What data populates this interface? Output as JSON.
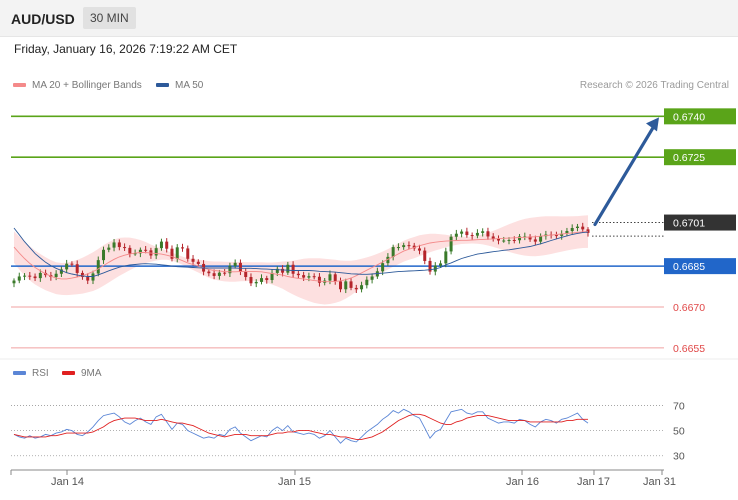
{
  "header": {
    "symbol": "AUD/USD",
    "timeframe": "30 MIN"
  },
  "datetime": "Friday, January 16, 2026 7:19:22 AM CET",
  "legend": {
    "ma20": {
      "label": "MA 20 + Bollinger Bands",
      "color": "#f48a8a"
    },
    "ma50": {
      "label": "MA 50",
      "color": "#2d5a9a"
    }
  },
  "credit": "Research © 2026 Trading Central",
  "rsi_legend": {
    "rsi": {
      "label": "RSI",
      "color": "#5b86d6"
    },
    "ma9": {
      "label": "9MA",
      "color": "#e02020"
    }
  },
  "colors": {
    "green": "#5aa419",
    "blue": "#2166c9",
    "red": "#e04848",
    "dark": "#333333",
    "bull": "#3a7a2a",
    "bear": "#b5252b",
    "band": "#fde0e0",
    "arrow": "#2d5a9a"
  },
  "chart_data": {
    "type": "candlestick",
    "instrument": "AUD/USD",
    "interval": "30 MIN",
    "levels": [
      {
        "value": 0.674,
        "label": "0.6740",
        "style": "green"
      },
      {
        "value": 0.6725,
        "label": "0.6725",
        "style": "green"
      },
      {
        "value": 0.6701,
        "label": "0.6701",
        "style": "current"
      },
      {
        "value": 0.6685,
        "label": "0.6685",
        "style": "blue"
      },
      {
        "value": 0.667,
        "label": "0.6670",
        "style": "red"
      },
      {
        "value": 0.6655,
        "label": "0.6655",
        "style": "red"
      }
    ],
    "price_range": [
      0.6652,
      0.6746
    ],
    "x_labels": [
      "Jan 14",
      "Jan 15",
      "Jan 16",
      "Jan 17",
      "Jan 31"
    ],
    "closes": [
      0.66797,
      0.66812,
      0.66815,
      0.66812,
      0.66806,
      0.66825,
      0.66817,
      0.6681,
      0.66822,
      0.66838,
      0.66859,
      0.66857,
      0.66825,
      0.6681,
      0.66797,
      0.66823,
      0.66872,
      0.6691,
      0.66918,
      0.66937,
      0.6692,
      0.66917,
      0.66896,
      0.66897,
      0.6691,
      0.66908,
      0.66889,
      0.66916,
      0.6694,
      0.66914,
      0.66877,
      0.66919,
      0.66915,
      0.66877,
      0.66866,
      0.66858,
      0.6683,
      0.66824,
      0.66814,
      0.66826,
      0.66824,
      0.66851,
      0.66862,
      0.6683,
      0.6681,
      0.66787,
      0.66792,
      0.66806,
      0.66799,
      0.66825,
      0.6684,
      0.66826,
      0.66855,
      0.66822,
      0.66817,
      0.66808,
      0.66813,
      0.66811,
      0.66789,
      0.66797,
      0.6682,
      0.66794,
      0.66765,
      0.66794,
      0.6677,
      0.66765,
      0.6678,
      0.668,
      0.66812,
      0.66831,
      0.66861,
      0.66884,
      0.6692,
      0.6692,
      0.66927,
      0.66925,
      0.66915,
      0.66907,
      0.66869,
      0.6683,
      0.66852,
      0.6686,
      0.66904,
      0.66958,
      0.66969,
      0.66977,
      0.66964,
      0.66962,
      0.66972,
      0.66978,
      0.66959,
      0.66951,
      0.66944,
      0.66944,
      0.66946,
      0.66945,
      0.66959,
      0.66959,
      0.66948,
      0.6694,
      0.6696,
      0.66966,
      0.66964,
      0.66961,
      0.66969,
      0.66979,
      0.6699,
      0.66995,
      0.66985,
      0.66972
    ],
    "ma50": [
      0.6699,
      0.66965,
      0.6694,
      0.66918,
      0.66896,
      0.6688,
      0.66864,
      0.66852,
      0.66842,
      0.66834,
      0.66826,
      0.66821,
      0.66817,
      0.66814,
      0.66812,
      0.66812,
      0.66818,
      0.66825,
      0.66833,
      0.6684,
      0.66846,
      0.66851,
      0.66854,
      0.66856,
      0.66858,
      0.66859,
      0.66858,
      0.66857,
      0.66855,
      0.66853,
      0.6685,
      0.66848,
      0.66847,
      0.66846,
      0.66845,
      0.66844,
      0.66843,
      0.66843,
      0.66843,
      0.66843,
      0.66843,
      0.66843,
      0.66843,
      0.66842,
      0.66842,
      0.66842,
      0.66841,
      0.6684,
      0.66839,
      0.66838,
      0.66837,
      0.66836,
      0.66835,
      0.66834,
      0.66834,
      0.66834,
      0.66834,
      0.66833,
      0.66831,
      0.6683,
      0.66829,
      0.66828,
      0.66826,
      0.66824,
      0.66822,
      0.66821,
      0.6682,
      0.6682,
      0.66821,
      0.66823,
      0.66824,
      0.66826,
      0.66828,
      0.6683,
      0.66831,
      0.66832,
      0.66833,
      0.66834,
      0.66835,
      0.66837,
      0.6684,
      0.66845,
      0.66855,
      0.66862,
      0.6687,
      0.66878,
      0.66884,
      0.66889,
      0.66894,
      0.66897,
      0.669,
      0.66903,
      0.66905,
      0.66908,
      0.6691,
      0.66913,
      0.66916,
      0.66919,
      0.66922,
      0.66927,
      0.66932,
      0.66938,
      0.66944,
      0.6695,
      0.66956,
      0.66961,
      0.66966,
      0.6697,
      0.66973,
      0.66975
    ],
    "ma20": [
      0.6692,
      0.66898,
      0.66878,
      0.6686,
      0.66845,
      0.66833,
      0.66822,
      0.66813,
      0.66806,
      0.66803,
      0.66803,
      0.66806,
      0.6681,
      0.66815,
      0.66822,
      0.6683,
      0.6684,
      0.66852,
      0.66864,
      0.66875,
      0.66884,
      0.6689,
      0.66895,
      0.66898,
      0.669,
      0.669,
      0.66898,
      0.66896,
      0.66894,
      0.6689,
      0.66885,
      0.66878,
      0.6687,
      0.66862,
      0.66856,
      0.6685,
      0.66844,
      0.66838,
      0.66834,
      0.66832,
      0.6683,
      0.66829,
      0.66829,
      0.6683,
      0.6683,
      0.6683,
      0.6683,
      0.66829,
      0.66826,
      0.66823,
      0.6682,
      0.66817,
      0.66812,
      0.66808,
      0.66805,
      0.66803,
      0.668,
      0.66797,
      0.66795,
      0.66793,
      0.66793,
      0.66794,
      0.66796,
      0.668,
      0.66806,
      0.66815,
      0.66825,
      0.66835,
      0.66845,
      0.66855,
      0.66865,
      0.66875,
      0.66885,
      0.66895,
      0.66905,
      0.66912,
      0.66918,
      0.66925,
      0.6693,
      0.66935,
      0.66938,
      0.6694,
      0.66942,
      0.66943,
      0.66944,
      0.66945,
      0.66945,
      0.66946,
      0.66947,
      0.66948,
      0.66949,
      0.6695,
      0.66951,
      0.66952,
      0.66953,
      0.66954,
      0.66955,
      0.66956,
      0.66957,
      0.66958,
      0.6696,
      0.66962,
      0.66964,
      0.66966,
      0.66968,
      0.6697,
      0.66972,
      0.66974,
      0.66976,
      0.66977
    ],
    "arrow": {
      "from": 0.67003,
      "to": 0.67396
    },
    "rsi": {
      "levels": [
        70,
        50,
        30
      ],
      "range": [
        25,
        80
      ],
      "values": [
        47,
        45,
        44,
        46,
        44,
        45,
        47,
        46,
        48,
        49,
        51,
        50,
        47,
        46,
        49,
        53,
        58,
        62,
        63,
        64,
        61,
        57,
        55,
        58,
        60,
        57,
        55,
        61,
        63,
        57,
        51,
        56,
        55,
        50,
        48,
        46,
        44,
        45,
        44,
        47,
        46,
        51,
        53,
        48,
        45,
        42,
        44,
        46,
        45,
        50,
        53,
        50,
        54,
        49,
        48,
        47,
        48,
        47,
        44,
        46,
        50,
        45,
        40,
        44,
        42,
        41,
        45,
        49,
        52,
        55,
        59,
        62,
        66,
        64,
        67,
        65,
        62,
        60,
        52,
        44,
        49,
        51,
        58,
        65,
        66,
        67,
        64,
        63,
        65,
        65,
        60,
        58,
        56,
        57,
        57,
        56,
        59,
        58,
        55,
        53,
        57,
        59,
        58,
        56,
        59,
        60,
        62,
        64,
        59,
        56
      ],
      "ma9": [
        47,
        46,
        45,
        45,
        45,
        45,
        45,
        46,
        46,
        47,
        48,
        48,
        48,
        48,
        48,
        49,
        51,
        53,
        56,
        58,
        59,
        60,
        60,
        60,
        59,
        58,
        58,
        58,
        59,
        58,
        57,
        56,
        56,
        55,
        54,
        52,
        50,
        48,
        47,
        46,
        45,
        46,
        47,
        47,
        47,
        46,
        46,
        46,
        46,
        47,
        48,
        48,
        49,
        49,
        50,
        50,
        50,
        49,
        48,
        47,
        47,
        46,
        45,
        45,
        44,
        43,
        43,
        44,
        45,
        47,
        49,
        52,
        55,
        58,
        60,
        62,
        63,
        63,
        62,
        60,
        58,
        56,
        55,
        55,
        57,
        58,
        60,
        61,
        62,
        62,
        62,
        61,
        60,
        59,
        58,
        58,
        58,
        58,
        57,
        57,
        57,
        57,
        57,
        57,
        57,
        58,
        58,
        59,
        59,
        59
      ]
    }
  }
}
